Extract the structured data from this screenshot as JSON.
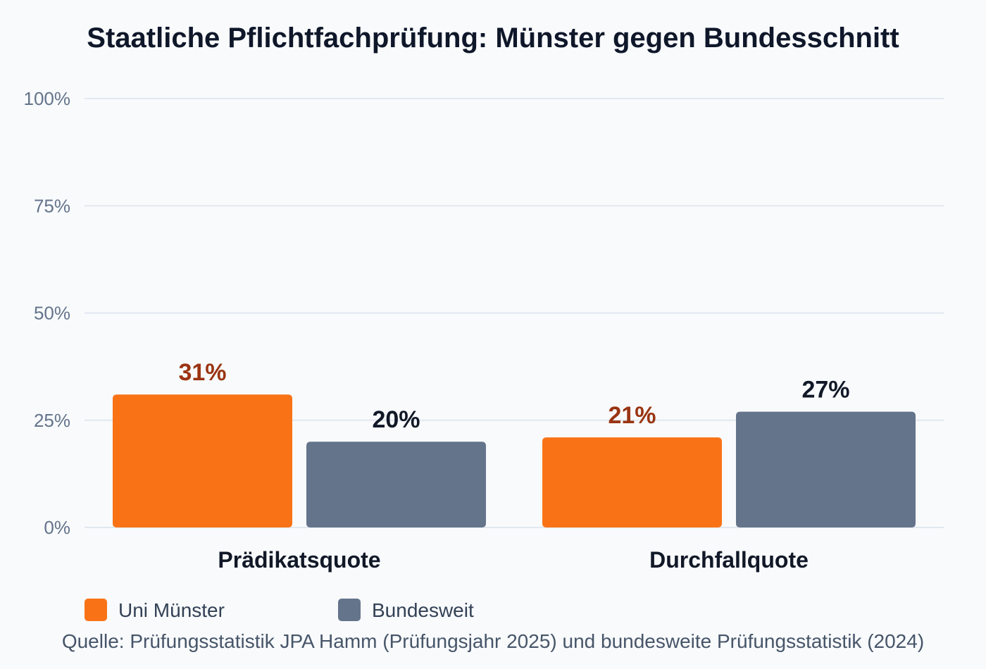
{
  "colors": {
    "background": "#f8fafc",
    "grid": "#e2e8f0",
    "muenster": "#f97316",
    "bund": "#64748b",
    "muenster_label": "#9a3412",
    "bund_label": "#111827"
  },
  "chart_data": {
    "type": "bar",
    "title": "Staatliche Pflichtfachprüfung: Münster gegen Bundesschnitt",
    "categories": [
      "Prädikatsquote",
      "Durchfallquote"
    ],
    "series": [
      {
        "name": "Uni Münster",
        "values": [
          31,
          21
        ],
        "labels": [
          "31%",
          "21%"
        ]
      },
      {
        "name": "Bundesweit",
        "values": [
          20,
          27
        ],
        "labels": [
          "20%",
          "27%"
        ]
      }
    ],
    "ylim": [
      0,
      100
    ],
    "yticks": [
      0,
      25,
      50,
      75,
      100
    ],
    "ytick_labels": [
      "0%",
      "25%",
      "50%",
      "75%",
      "100%"
    ],
    "grid": true,
    "legend_position": "bottom-left",
    "source": "Quelle: Prüfungsstatistik JPA Hamm (Prüfungsjahr 2025) und bundesweite Prüfungsstatistik (2024)"
  }
}
